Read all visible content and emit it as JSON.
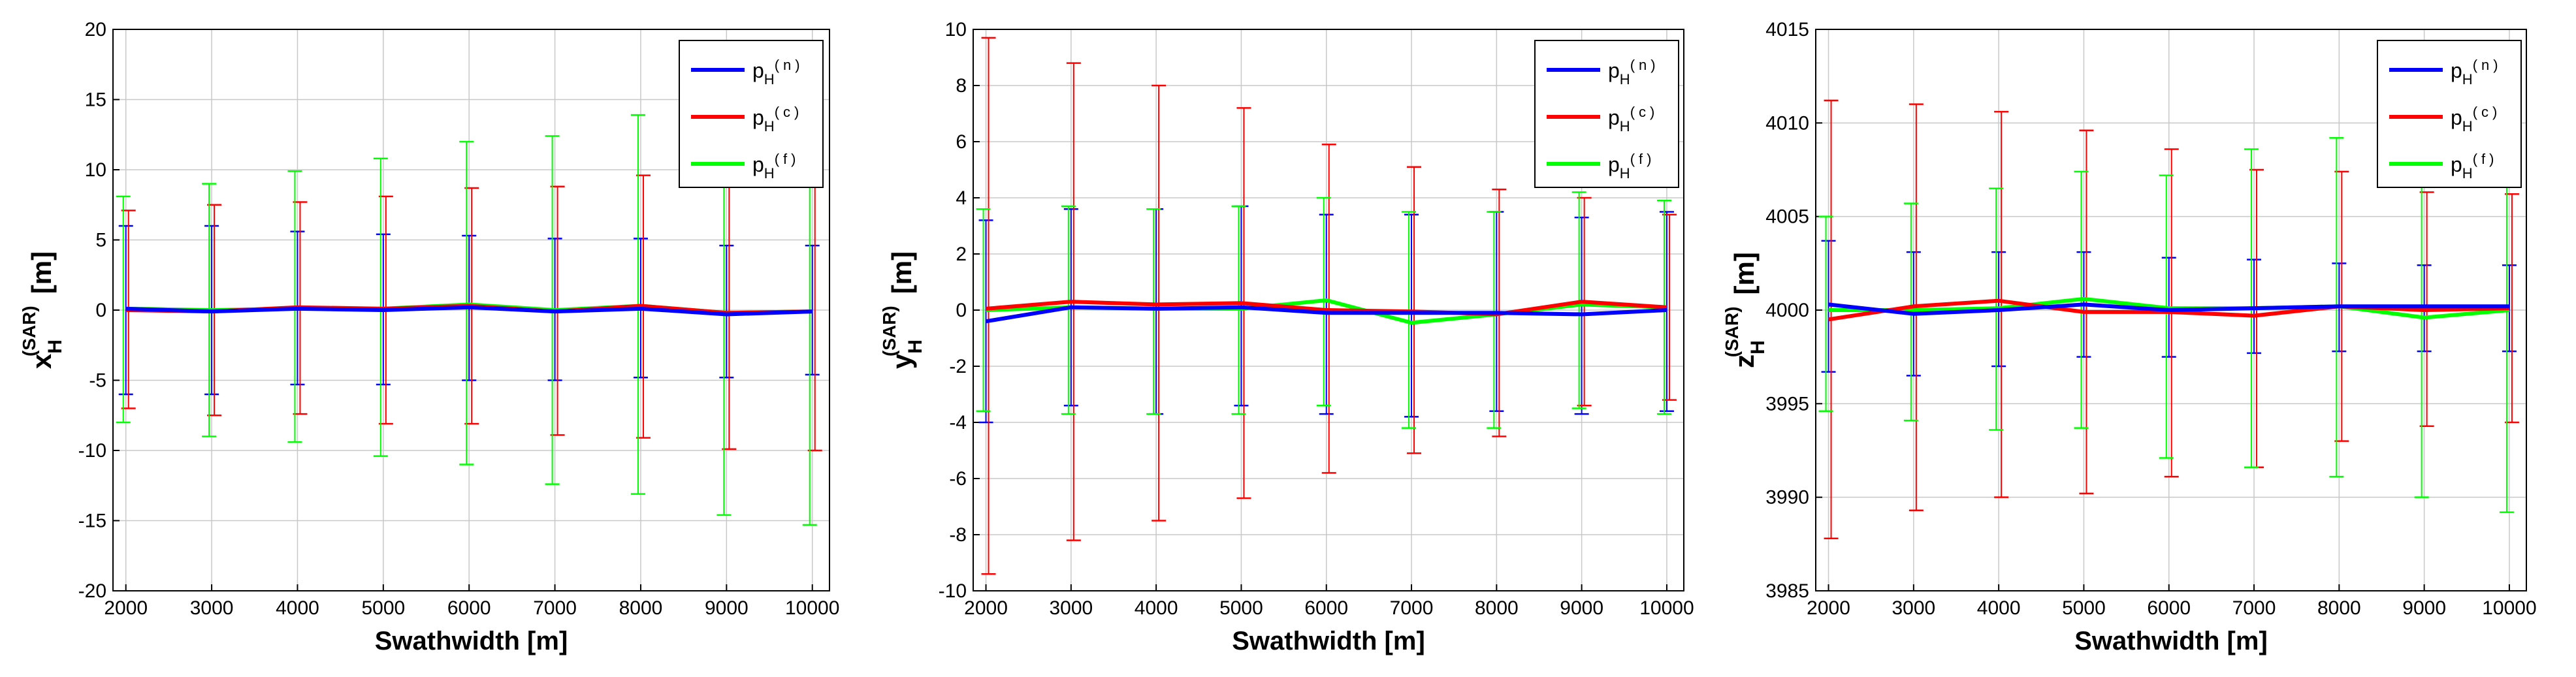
{
  "chart_data": [
    {
      "type": "line",
      "xlabel": "Swathwidth [m]",
      "ylabel": {
        "base": "x",
        "sub": "H",
        "sup": "(SAR)",
        "unit": "[m]"
      },
      "ylim": [
        -20,
        20
      ],
      "yticks": [
        -20,
        -15,
        -10,
        -5,
        0,
        5,
        10,
        15,
        20
      ],
      "xlim": [
        1850,
        10200
      ],
      "xticks": [
        2000,
        3000,
        4000,
        5000,
        6000,
        7000,
        8000,
        9000,
        10000
      ],
      "grid": true,
      "legend_position": "top-right",
      "series": [
        {
          "name": "n",
          "color": "#0000ff",
          "values": [
            0.1,
            -0.1,
            0.1,
            0.0,
            0.2,
            -0.1,
            0.1,
            -0.3,
            -0.1
          ],
          "err_lower": [
            -6.0,
            -6.0,
            -5.3,
            -5.3,
            -5.0,
            -5.0,
            -4.8,
            -4.8,
            -4.6
          ],
          "err_upper": [
            6.0,
            6.0,
            5.6,
            5.4,
            5.3,
            5.1,
            5.1,
            4.6,
            4.6
          ]
        },
        {
          "name": "c",
          "color": "#ff0000",
          "values": [
            0.0,
            -0.1,
            0.2,
            0.1,
            0.3,
            -0.1,
            0.3,
            -0.2,
            -0.1
          ],
          "err_lower": [
            -7.0,
            -7.5,
            -7.4,
            -8.1,
            -8.1,
            -8.9,
            -9.1,
            -9.9,
            -10.0
          ],
          "err_upper": [
            7.1,
            7.5,
            7.7,
            8.1,
            8.7,
            8.8,
            9.6,
            10.0,
            10.1
          ]
        },
        {
          "name": "f",
          "color": "#00ff00",
          "values": [
            0.1,
            0.0,
            0.1,
            0.1,
            0.4,
            0.0,
            0.3,
            -0.2,
            -0.1
          ],
          "err_lower": [
            -8.0,
            -9.0,
            -9.4,
            -10.4,
            -11.0,
            -12.4,
            -13.1,
            -14.6,
            -15.3
          ],
          "err_upper": [
            8.1,
            9.0,
            9.9,
            10.8,
            12.0,
            12.4,
            13.9,
            14.6,
            15.3
          ]
        }
      ]
    },
    {
      "type": "line",
      "xlabel": "Swathwidth [m]",
      "ylabel": {
        "base": "y",
        "sub": "H",
        "sup": "(SAR)",
        "unit": "[m]"
      },
      "ylim": [
        -10,
        10
      ],
      "yticks": [
        -10,
        -8,
        -6,
        -4,
        -2,
        0,
        2,
        4,
        6,
        8,
        10
      ],
      "xlim": [
        1850,
        10200
      ],
      "xticks": [
        2000,
        3000,
        4000,
        5000,
        6000,
        7000,
        8000,
        9000,
        10000
      ],
      "grid": true,
      "legend_position": "top-right",
      "series": [
        {
          "name": "n",
          "color": "#0000ff",
          "values": [
            -0.4,
            0.1,
            0.05,
            0.1,
            -0.1,
            -0.1,
            -0.1,
            -0.15,
            0.0
          ],
          "err_lower": [
            -4.0,
            -3.4,
            -3.7,
            -3.4,
            -3.7,
            -3.8,
            -3.6,
            -3.7,
            -3.6
          ],
          "err_upper": [
            3.2,
            3.6,
            3.6,
            3.7,
            3.4,
            3.4,
            3.5,
            3.3,
            3.5
          ]
        },
        {
          "name": "c",
          "color": "#ff0000",
          "values": [
            0.05,
            0.3,
            0.2,
            0.25,
            0.0,
            -0.05,
            -0.15,
            0.3,
            0.1
          ],
          "err_lower": [
            -9.4,
            -8.2,
            -7.5,
            -6.7,
            -5.8,
            -5.1,
            -4.5,
            -3.4,
            -3.2
          ],
          "err_upper": [
            9.7,
            8.8,
            8.0,
            7.2,
            5.9,
            5.1,
            4.3,
            4.0,
            3.4
          ]
        },
        {
          "name": "f",
          "color": "#00ff00",
          "values": [
            0.0,
            0.1,
            0.05,
            0.05,
            0.35,
            -0.45,
            -0.15,
            0.2,
            0.1
          ],
          "err_lower": [
            -3.6,
            -3.7,
            -3.7,
            -3.7,
            -3.4,
            -4.2,
            -4.2,
            -3.5,
            -3.7
          ],
          "err_upper": [
            3.6,
            3.7,
            3.6,
            3.7,
            4.0,
            3.5,
            3.5,
            4.2,
            3.9
          ]
        }
      ]
    },
    {
      "type": "line",
      "xlabel": "Swathwidth [m]",
      "ylabel": {
        "base": "z",
        "sub": "H",
        "sup": "(SAR)",
        "unit": "[m]"
      },
      "ylim": [
        3985,
        4015
      ],
      "yticks": [
        3985,
        3990,
        3995,
        4000,
        4005,
        4010,
        4015
      ],
      "xlim": [
        1850,
        10200
      ],
      "xticks": [
        2000,
        3000,
        4000,
        5000,
        6000,
        7000,
        8000,
        9000,
        10000
      ],
      "grid": true,
      "legend_position": "top-right",
      "series": [
        {
          "name": "n",
          "color": "#0000ff",
          "values": [
            4000.3,
            3999.8,
            4000.0,
            4000.3,
            4000.0,
            4000.1,
            4000.2,
            4000.2,
            4000.2
          ],
          "err_lower": [
            3996.7,
            3996.5,
            3997.0,
            3997.5,
            3997.5,
            3997.7,
            3997.8,
            3997.8,
            3997.8
          ],
          "err_upper": [
            4003.7,
            4003.1,
            4003.1,
            4003.1,
            4002.8,
            4002.7,
            4002.5,
            4002.4,
            4002.4
          ]
        },
        {
          "name": "c",
          "color": "#ff0000",
          "values": [
            3999.5,
            4000.2,
            4000.5,
            3999.9,
            3999.9,
            3999.7,
            4000.2,
            4000.0,
            4000.1
          ],
          "err_lower": [
            3987.8,
            3989.3,
            3990.0,
            3990.2,
            3991.1,
            3991.6,
            3993.0,
            3993.8,
            3994.0
          ],
          "err_upper": [
            4011.2,
            4011.0,
            4010.6,
            4009.6,
            4008.6,
            4007.5,
            4007.4,
            4006.3,
            4006.2
          ]
        },
        {
          "name": "f",
          "color": "#00ff00",
          "values": [
            4000.0,
            4000.0,
            4000.1,
            4000.6,
            4000.1,
            4000.1,
            4000.2,
            3999.6,
            4000.0
          ],
          "err_lower": [
            3994.6,
            3994.1,
            3993.6,
            3993.7,
            3992.1,
            3991.6,
            3991.1,
            3990.0,
            3989.2
          ],
          "err_upper": [
            4005.0,
            4005.7,
            4006.5,
            4007.4,
            4007.2,
            4008.6,
            4009.2,
            4009.8,
            4010.8
          ]
        }
      ]
    }
  ]
}
